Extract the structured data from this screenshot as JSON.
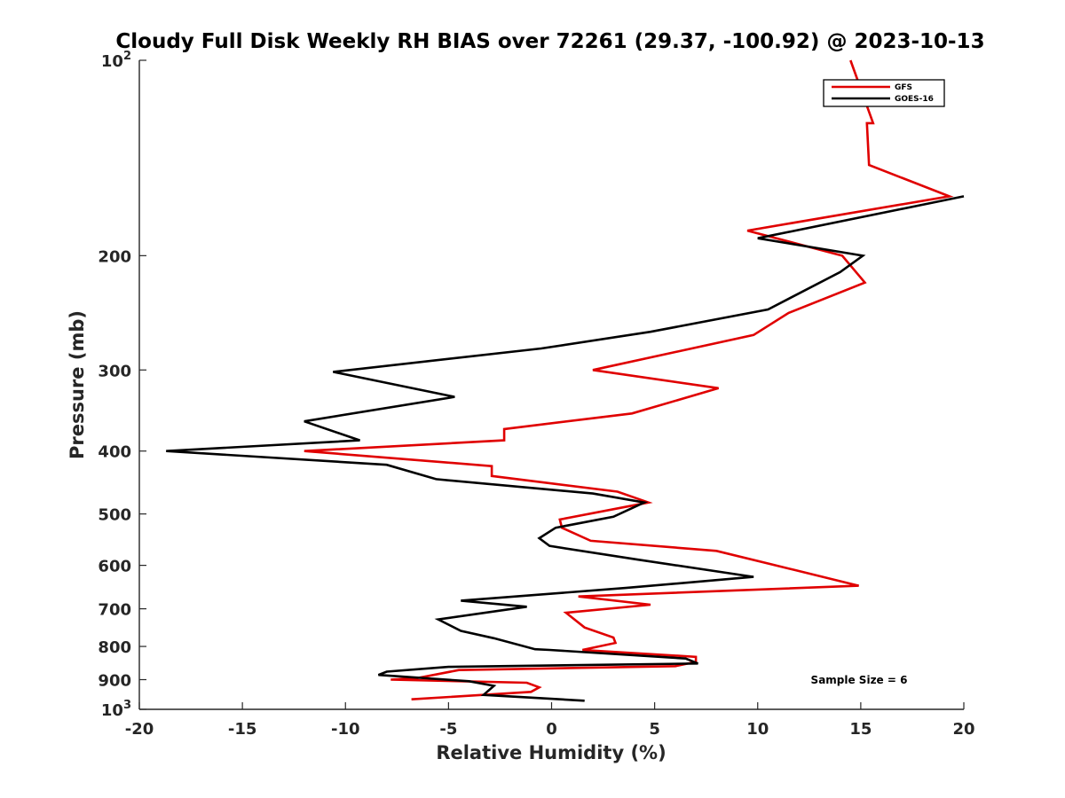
{
  "chart_data": {
    "type": "line",
    "title": "Cloudy Full Disk Weekly RH BIAS over 72261 (29.37, -100.92) @ 2023-10-13",
    "xlabel": "Relative Humidity (%)",
    "ylabel": "Pressure (mb)",
    "xlim": [
      -20,
      20
    ],
    "ylim": [
      1000,
      100
    ],
    "yscale": "log",
    "y_reversed": true,
    "grid": false,
    "legend_position": "top-right",
    "x_ticks": [
      "-20",
      "-15",
      "-10",
      "-5",
      "0",
      "5",
      "10",
      "15",
      "20"
    ],
    "y_ticks": [
      {
        "value": 100,
        "base": "10",
        "exp": "2"
      },
      {
        "value": 200,
        "label": "200"
      },
      {
        "value": 300,
        "label": "300"
      },
      {
        "value": 400,
        "label": "400"
      },
      {
        "value": 500,
        "label": "500"
      },
      {
        "value": 600,
        "label": "600"
      },
      {
        "value": 700,
        "label": "700"
      },
      {
        "value": 800,
        "label": "800"
      },
      {
        "value": 900,
        "label": "900"
      },
      {
        "value": 1000,
        "base": "10",
        "exp": "3"
      }
    ],
    "series": [
      {
        "name": "GFS",
        "color": "#e00000",
        "x": [
          14.5,
          15.6,
          15.3,
          15.4,
          19.3,
          9.5,
          14.1,
          15.2,
          11.5,
          9.8,
          2.0,
          8.1,
          3.9,
          -2.3,
          -2.3,
          -12.0,
          -2.9,
          -2.9,
          3.2,
          4.7,
          0.4,
          0.5,
          1.9,
          8.0,
          11.8,
          14.9,
          1.3,
          4.8,
          0.7,
          1.6,
          3.0,
          3.1,
          1.5,
          7.0,
          7.0,
          6.0,
          -4.5,
          -6.5,
          -7.8,
          -1.2,
          -0.6,
          -1.0,
          -6.8
        ],
        "y": [
          100,
          125,
          125,
          145,
          162,
          183,
          200,
          220,
          245,
          265,
          300,
          320,
          350,
          370,
          385,
          400,
          422,
          437,
          462,
          480,
          510,
          525,
          550,
          570,
          610,
          645,
          670,
          690,
          710,
          748,
          775,
          790,
          810,
          830,
          845,
          858,
          870,
          895,
          900,
          910,
          925,
          940,
          965
        ]
      },
      {
        "name": "GOES-16",
        "color": "#000000",
        "x": [
          20.0,
          10.0,
          15.1,
          14.0,
          10.5,
          4.8,
          -0.5,
          -10.6,
          -4.7,
          -12.0,
          -9.3,
          -18.7,
          -8.0,
          -5.6,
          2.0,
          4.5,
          3.0,
          0.2,
          -0.6,
          -0.1,
          4.2,
          9.8,
          3.6,
          -4.4,
          -1.2,
          -5.5,
          -4.4,
          -2.8,
          -0.8,
          -0.1,
          6.5,
          7.1,
          -5.0,
          -8.0,
          -8.4,
          -4.0,
          -2.8,
          -3.3,
          1.6
        ],
        "y": [
          162,
          188,
          200,
          212,
          242,
          262,
          278,
          302,
          330,
          360,
          385,
          400,
          420,
          442,
          465,
          480,
          505,
          525,
          545,
          560,
          588,
          625,
          650,
          680,
          695,
          727,
          757,
          777,
          808,
          810,
          835,
          850,
          860,
          875,
          885,
          905,
          920,
          950,
          970
        ]
      }
    ],
    "annotations": [
      "Sample Size = 6"
    ]
  }
}
